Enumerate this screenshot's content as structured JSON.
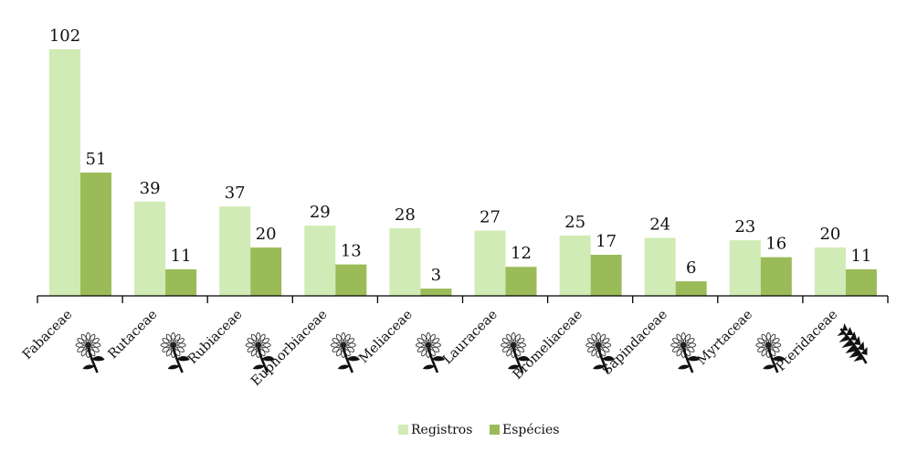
{
  "chart_data": {
    "type": "bar",
    "categories": [
      "Fabaceae",
      "Rutaceae",
      "Rubiaceae",
      "Euphorbiaceae",
      "Meliaceae",
      "Lauraceae",
      "Bromeliaceae",
      "Sapindaceae",
      "Myrtaceae",
      "Pteridaceae"
    ],
    "category_icons": [
      "flower-icon",
      "flower-icon",
      "flower-icon",
      "flower-icon",
      "flower-icon",
      "flower-icon",
      "flower-icon",
      "flower-icon",
      "flower-icon",
      "fern-icon"
    ],
    "series": [
      {
        "name": "Registros",
        "color": "#d0ebb5",
        "values": [
          102,
          39,
          37,
          29,
          28,
          27,
          25,
          24,
          23,
          20
        ]
      },
      {
        "name": "Espécies",
        "color": "#9bbb59",
        "values": [
          51,
          11,
          20,
          13,
          3,
          12,
          17,
          6,
          16,
          11
        ]
      }
    ],
    "title": "",
    "xlabel": "",
    "ylabel": "",
    "ylim": [
      0,
      102
    ],
    "data_labels": true,
    "grid": false,
    "legend_position": "bottom"
  }
}
